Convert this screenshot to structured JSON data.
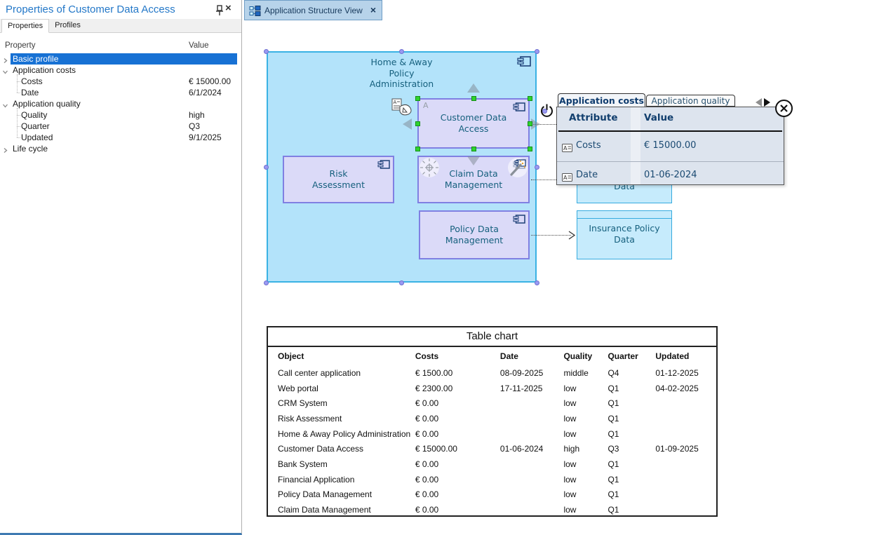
{
  "left_panel": {
    "title": "Properties of Customer Data Access",
    "tabs": [
      {
        "label": "Properties",
        "active": true
      },
      {
        "label": "Profiles",
        "active": false
      }
    ],
    "columns": [
      "Property",
      "Value"
    ],
    "rows": [
      {
        "label": "Basic profile",
        "value": "",
        "level": 0,
        "chevron": "right",
        "selected": true
      },
      {
        "label": "Application costs",
        "value": "",
        "level": 0,
        "chevron": "down",
        "selected": false
      },
      {
        "label": "Costs",
        "value": "€ 15000.00",
        "level": 1,
        "chevron": null,
        "selected": false
      },
      {
        "label": "Date",
        "value": "6/1/2024",
        "level": 1,
        "chevron": null,
        "selected": false
      },
      {
        "label": "Application quality",
        "value": "",
        "level": 0,
        "chevron": "down",
        "selected": false
      },
      {
        "label": "Quality",
        "value": "high",
        "level": 1,
        "chevron": null,
        "selected": false
      },
      {
        "label": "Quarter",
        "value": "Q3",
        "level": 1,
        "chevron": null,
        "selected": false
      },
      {
        "label": "Updated",
        "value": "9/1/2025",
        "level": 1,
        "chevron": null,
        "selected": false
      },
      {
        "label": "Life cycle",
        "value": "",
        "level": 0,
        "chevron": "right",
        "selected": false
      }
    ]
  },
  "doc_tab": {
    "label": "Application Structure View"
  },
  "diagram": {
    "container": {
      "label": "Home & Away Policy Administration"
    },
    "customer_badge": "A",
    "nodes": [
      {
        "id": "customer-data-access",
        "label": "Customer Data Access"
      },
      {
        "id": "risk-assessment",
        "label": "Risk Assessment"
      },
      {
        "id": "claim-data-management",
        "label": "Claim Data Management"
      },
      {
        "id": "policy-data-management",
        "label": "Policy Data Management"
      }
    ],
    "data_objects": [
      {
        "id": "hidden-data-object",
        "label": "Data"
      },
      {
        "id": "insurance-policy-data",
        "label": "Insurance Policy Data"
      }
    ]
  },
  "popup": {
    "tabs": [
      {
        "label": "Application costs",
        "active": true
      },
      {
        "label": "Application quality",
        "active": false
      }
    ],
    "columns": [
      "Attribute",
      "Value"
    ],
    "rows": [
      {
        "attribute": "Costs",
        "value": "€ 15000.00"
      },
      {
        "attribute": "Date",
        "value": "01-06-2024"
      }
    ]
  },
  "table_chart": {
    "title": "Table chart",
    "columns": [
      "Object",
      "Costs",
      "Date",
      "Quality",
      "Quarter",
      "Updated"
    ],
    "rows": [
      [
        "Call center application",
        "€ 1500.00",
        "08-09-2025",
        "middle",
        "Q4",
        "01-12-2025"
      ],
      [
        "Web portal",
        "€ 2300.00",
        "17-11-2025",
        "low",
        "Q1",
        "04-02-2025"
      ],
      [
        "CRM System",
        "€ 0.00",
        "",
        "low",
        "Q1",
        ""
      ],
      [
        "Risk Assessment",
        "€ 0.00",
        "",
        "low",
        "Q1",
        ""
      ],
      [
        "Home & Away Policy Administration",
        "€ 0.00",
        "",
        "low",
        "Q1",
        ""
      ],
      [
        "Customer Data Access",
        "€ 15000.00",
        "01-06-2024",
        "high",
        "Q3",
        "01-09-2025"
      ],
      [
        "Bank System",
        "€ 0.00",
        "",
        "low",
        "Q1",
        ""
      ],
      [
        "Financial Application",
        "€ 0.00",
        "",
        "low",
        "Q1",
        ""
      ],
      [
        "Policy Data Management",
        "€ 0.00",
        "",
        "low",
        "Q1",
        ""
      ],
      [
        "Claim Data Management",
        "€ 0.00",
        "",
        "low",
        "Q1",
        ""
      ]
    ]
  },
  "colors": {
    "selection_blue": "#1771d4",
    "panel_title_blue": "#2478c8",
    "container_fill": "#b3e3fa",
    "container_border": "#3ab2e4",
    "component_fill": "#dbdaf8",
    "component_border": "#8080e2",
    "data_object_fill": "#c6ebfc",
    "data_object_border": "#36abdf",
    "diagram_text": "#16607e",
    "popup_background": "#dde4ee",
    "popup_text": "#1b4a72",
    "handle_green": "#2fd32f",
    "handle_violet": "#9a9af2",
    "doc_tab_fill": "#b7d3ea"
  }
}
